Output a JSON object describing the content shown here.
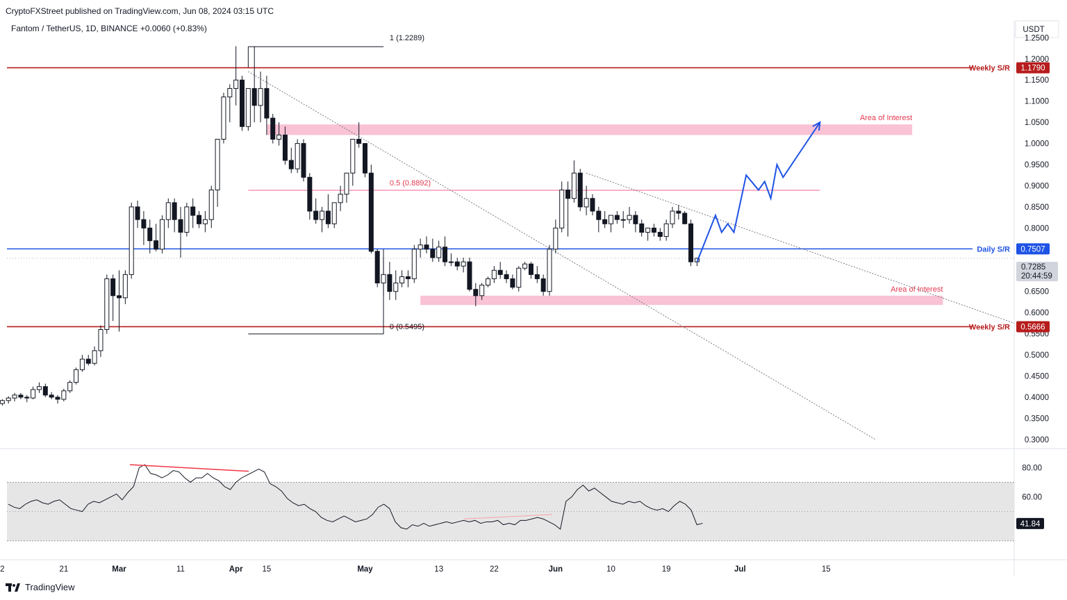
{
  "header": {
    "published": "CryptoFXStreet published on TradingView.com, Jun 08, 2024 03:15 UTC"
  },
  "chart_data": {
    "type": "candlestick",
    "symbol_line": "Fantom / TetherUS, 1D, BINANCE",
    "change_text": "+0.0060 (+0.83%)",
    "currency": "USDT",
    "ylim": [
      0.28,
      1.29
    ],
    "y_ticks": [
      "1.2500",
      "1.2000",
      "1.1500",
      "1.1000",
      "1.0500",
      "1.0000",
      "0.9500",
      "0.9000",
      "0.8500",
      "0.8000",
      "0.6500",
      "0.6000",
      "0.5500",
      "0.5000",
      "0.4500",
      "0.4000",
      "0.3500",
      "0.3000"
    ],
    "x_ticks": [
      {
        "day": -29,
        "label": "2"
      },
      {
        "day": -19,
        "label": "21"
      },
      {
        "day": -10,
        "label": "Mar"
      },
      {
        "day": 0,
        "label": "11"
      },
      {
        "day": 9,
        "label": "Apr"
      },
      {
        "day": 14,
        "label": "15"
      },
      {
        "day": 30,
        "label": "May"
      },
      {
        "day": 42,
        "label": "13"
      },
      {
        "day": 51,
        "label": "22"
      },
      {
        "day": 61,
        "label": "Jun"
      },
      {
        "day": 70,
        "label": "10"
      },
      {
        "day": 79,
        "label": "19"
      },
      {
        "day": 91,
        "label": "Jul"
      },
      {
        "day": 105,
        "label": "15"
      }
    ],
    "candles": [
      [
        -29,
        0.385,
        0.395,
        0.38,
        0.392
      ],
      [
        -28,
        0.392,
        0.402,
        0.385,
        0.398
      ],
      [
        -27,
        0.398,
        0.41,
        0.39,
        0.405
      ],
      [
        -26,
        0.405,
        0.41,
        0.395,
        0.4
      ],
      [
        -25,
        0.4,
        0.405,
        0.388,
        0.398
      ],
      [
        -24,
        0.398,
        0.425,
        0.395,
        0.418
      ],
      [
        -23,
        0.418,
        0.435,
        0.41,
        0.425
      ],
      [
        -22,
        0.425,
        0.432,
        0.4,
        0.405
      ],
      [
        -21,
        0.405,
        0.412,
        0.395,
        0.4
      ],
      [
        -20,
        0.4,
        0.405,
        0.385,
        0.395
      ],
      [
        -19,
        0.395,
        0.42,
        0.39,
        0.415
      ],
      [
        -18,
        0.415,
        0.44,
        0.41,
        0.435
      ],
      [
        -17,
        0.435,
        0.47,
        0.43,
        0.465
      ],
      [
        -16,
        0.465,
        0.5,
        0.46,
        0.49
      ],
      [
        -15,
        0.49,
        0.5,
        0.475,
        0.48
      ],
      [
        -14,
        0.48,
        0.52,
        0.475,
        0.51
      ],
      [
        -13,
        0.51,
        0.57,
        0.495,
        0.56
      ],
      [
        -12,
        0.56,
        0.69,
        0.55,
        0.68
      ],
      [
        -11,
        0.68,
        0.69,
        0.58,
        0.64
      ],
      [
        -10,
        0.64,
        0.7,
        0.555,
        0.635
      ],
      [
        -9,
        0.635,
        0.7,
        0.62,
        0.69
      ],
      [
        -8,
        0.69,
        0.86,
        0.68,
        0.85
      ],
      [
        -7,
        0.85,
        0.865,
        0.8,
        0.82
      ],
      [
        -6,
        0.82,
        0.84,
        0.76,
        0.8
      ],
      [
        -5,
        0.8,
        0.82,
        0.74,
        0.77
      ],
      [
        -4,
        0.77,
        0.81,
        0.745,
        0.75
      ],
      [
        -3,
        0.75,
        0.83,
        0.74,
        0.82
      ],
      [
        -2,
        0.82,
        0.87,
        0.8,
        0.86
      ],
      [
        -1,
        0.86,
        0.87,
        0.79,
        0.82
      ],
      [
        0,
        0.82,
        0.85,
        0.73,
        0.79
      ],
      [
        1,
        0.79,
        0.86,
        0.78,
        0.85
      ],
      [
        2,
        0.85,
        0.87,
        0.8,
        0.83
      ],
      [
        3,
        0.83,
        0.84,
        0.8,
        0.81
      ],
      [
        4,
        0.81,
        0.84,
        0.79,
        0.82
      ],
      [
        5,
        0.82,
        0.9,
        0.8,
        0.89
      ],
      [
        6,
        0.89,
        1.0,
        0.85,
        1.01
      ],
      [
        7,
        1.01,
        1.12,
        1.0,
        1.11
      ],
      [
        8,
        1.11,
        1.14,
        1.05,
        1.13
      ],
      [
        9,
        1.13,
        1.23,
        1.09,
        1.15
      ],
      [
        10,
        1.15,
        1.16,
        1.03,
        1.04
      ],
      [
        11,
        1.04,
        1.13,
        1.03,
        1.13
      ],
      [
        12,
        1.13,
        1.23,
        1.05,
        1.09
      ],
      [
        13,
        1.09,
        1.17,
        1.05,
        1.13
      ],
      [
        14,
        1.13,
        1.16,
        1.02,
        1.06
      ],
      [
        15,
        1.06,
        1.07,
        1.0,
        1.01
      ],
      [
        16,
        1.01,
        1.05,
        0.995,
        1.02
      ],
      [
        17,
        1.02,
        1.04,
        0.95,
        0.96
      ],
      [
        18,
        0.96,
        0.99,
        0.93,
        0.94
      ],
      [
        19,
        0.94,
        1.01,
        0.93,
        1.0
      ],
      [
        20,
        1.0,
        1.01,
        0.91,
        0.92
      ],
      [
        21,
        0.92,
        0.93,
        0.82,
        0.84
      ],
      [
        22,
        0.84,
        0.87,
        0.81,
        0.82
      ],
      [
        23,
        0.82,
        0.85,
        0.79,
        0.84
      ],
      [
        24,
        0.84,
        0.88,
        0.8,
        0.81
      ],
      [
        25,
        0.81,
        0.86,
        0.8,
        0.86
      ],
      [
        26,
        0.86,
        0.9,
        0.84,
        0.88
      ],
      [
        27,
        0.88,
        0.93,
        0.86,
        0.93
      ],
      [
        28,
        0.93,
        1.0,
        0.9,
        1.01
      ],
      [
        29,
        1.01,
        1.05,
        0.99,
        1.0
      ],
      [
        30,
        1.0,
        1.0,
        0.92,
        0.93
      ],
      [
        31,
        0.93,
        0.95,
        0.74,
        0.745
      ],
      [
        32,
        0.745,
        0.75,
        0.66,
        0.67
      ],
      [
        33,
        0.67,
        0.73,
        0.64,
        0.69
      ],
      [
        34,
        0.69,
        0.72,
        0.63,
        0.65
      ],
      [
        35,
        0.65,
        0.7,
        0.63,
        0.67
      ],
      [
        36,
        0.67,
        0.7,
        0.66,
        0.685
      ],
      [
        37,
        0.685,
        0.7,
        0.66,
        0.68
      ],
      [
        38,
        0.68,
        0.76,
        0.67,
        0.75
      ],
      [
        39,
        0.75,
        0.775,
        0.73,
        0.76
      ],
      [
        40,
        0.76,
        0.78,
        0.74,
        0.75
      ],
      [
        41,
        0.75,
        0.775,
        0.72,
        0.73
      ],
      [
        42,
        0.73,
        0.77,
        0.72,
        0.755
      ],
      [
        43,
        0.755,
        0.78,
        0.71,
        0.72
      ],
      [
        44,
        0.72,
        0.74,
        0.71,
        0.72
      ],
      [
        45,
        0.72,
        0.73,
        0.7,
        0.71
      ],
      [
        46,
        0.71,
        0.73,
        0.695,
        0.72
      ],
      [
        47,
        0.72,
        0.73,
        0.65,
        0.655
      ],
      [
        48,
        0.655,
        0.67,
        0.615,
        0.64
      ],
      [
        49,
        0.64,
        0.67,
        0.63,
        0.665
      ],
      [
        50,
        0.665,
        0.685,
        0.66,
        0.68
      ],
      [
        51,
        0.68,
        0.71,
        0.67,
        0.7
      ],
      [
        52,
        0.7,
        0.72,
        0.68,
        0.69
      ],
      [
        53,
        0.69,
        0.7,
        0.67,
        0.68
      ],
      [
        54,
        0.68,
        0.69,
        0.655,
        0.66
      ],
      [
        55,
        0.66,
        0.71,
        0.65,
        0.705
      ],
      [
        56,
        0.705,
        0.72,
        0.7,
        0.715
      ],
      [
        57,
        0.715,
        0.72,
        0.68,
        0.69
      ],
      [
        58,
        0.69,
        0.71,
        0.67,
        0.68
      ],
      [
        59,
        0.68,
        0.69,
        0.64,
        0.65
      ],
      [
        60,
        0.65,
        0.76,
        0.64,
        0.75
      ],
      [
        61,
        0.75,
        0.82,
        0.74,
        0.8
      ],
      [
        62,
        0.8,
        0.91,
        0.79,
        0.89
      ],
      [
        63,
        0.89,
        0.91,
        0.78,
        0.87
      ],
      [
        64,
        0.87,
        0.96,
        0.86,
        0.93
      ],
      [
        65,
        0.93,
        0.94,
        0.84,
        0.85
      ],
      [
        66,
        0.85,
        0.9,
        0.83,
        0.87
      ],
      [
        67,
        0.87,
        0.88,
        0.83,
        0.84
      ],
      [
        68,
        0.84,
        0.85,
        0.79,
        0.82
      ],
      [
        69,
        0.82,
        0.84,
        0.8,
        0.81
      ],
      [
        70,
        0.81,
        0.83,
        0.79,
        0.83
      ],
      [
        71,
        0.83,
        0.84,
        0.81,
        0.82
      ],
      [
        72,
        0.82,
        0.84,
        0.8,
        0.82
      ],
      [
        73,
        0.82,
        0.85,
        0.81,
        0.83
      ],
      [
        74,
        0.83,
        0.84,
        0.79,
        0.81
      ],
      [
        75,
        0.81,
        0.82,
        0.78,
        0.79
      ],
      [
        76,
        0.79,
        0.8,
        0.77,
        0.8
      ],
      [
        77,
        0.8,
        0.81,
        0.78,
        0.79
      ],
      [
        78,
        0.79,
        0.8,
        0.77,
        0.78
      ],
      [
        79,
        0.78,
        0.82,
        0.77,
        0.81
      ],
      [
        80,
        0.81,
        0.85,
        0.8,
        0.84
      ],
      [
        81,
        0.84,
        0.855,
        0.82,
        0.835
      ],
      [
        82,
        0.835,
        0.84,
        0.81,
        0.81
      ],
      [
        83,
        0.81,
        0.82,
        0.71,
        0.72
      ],
      [
        84,
        0.72,
        0.73,
        0.71,
        0.7285
      ]
    ],
    "levels": [
      {
        "price": 1.179,
        "color": "#b71c1c",
        "label": "Weekly S/R",
        "tag": "1.1790"
      },
      {
        "price": 0.7507,
        "color": "#1e53e5",
        "label": "Daily S/R",
        "tag": "0.7507"
      },
      {
        "price": 0.5666,
        "color": "#b71c1c",
        "label": "Weekly S/R",
        "tag": "0.5666"
      }
    ],
    "zones": [
      {
        "from_day": 14,
        "to_day": 119,
        "low": 1.02,
        "high": 1.045,
        "label": "Area of Interest",
        "color": "#f8bbd0"
      },
      {
        "from_day": 39,
        "to_day": 124,
        "low": 0.618,
        "high": 0.64,
        "label": "Area of Interest",
        "color": "#f8bbd0"
      }
    ],
    "fib": {
      "levels": [
        {
          "ratio": "1",
          "price": 1.2289,
          "text": "1 (1.2289)"
        },
        {
          "ratio": "0.5",
          "price": 0.8892,
          "text": "0.5 (0.8892)"
        },
        {
          "ratio": "0",
          "price": 0.5495,
          "text": "0 (0.5495)"
        }
      ]
    },
    "current": {
      "price": 0.7285,
      "price_tag": "0.7285",
      "countdown": "20:44:59"
    },
    "projection": [
      [
        84,
        0.72
      ],
      [
        87,
        0.83
      ],
      [
        88,
        0.79
      ],
      [
        89,
        0.81
      ],
      [
        90,
        0.79
      ],
      [
        92,
        0.925
      ],
      [
        94,
        0.89
      ],
      [
        95,
        0.91
      ],
      [
        96,
        0.87
      ],
      [
        97,
        0.95
      ],
      [
        98,
        0.92
      ],
      [
        104,
        1.05
      ]
    ],
    "rsi": {
      "ticks": [
        "80.00",
        "60.00"
      ],
      "ylim": [
        20,
        92
      ],
      "band": [
        30,
        70
      ],
      "mid": 50,
      "last_tag": "41.84",
      "values": [
        55,
        53,
        52,
        55,
        57,
        58,
        56,
        55,
        57,
        58,
        55,
        52,
        51,
        50,
        55,
        57,
        56,
        58,
        60,
        62,
        58,
        63,
        67,
        80,
        82,
        76,
        75,
        73,
        75,
        78,
        77,
        73,
        70,
        73,
        73,
        76,
        73,
        71,
        67,
        65,
        70,
        73,
        75,
        77,
        79,
        77,
        69,
        67,
        64,
        59,
        56,
        54,
        55,
        52,
        50,
        46,
        44,
        43,
        45,
        47,
        45,
        43,
        44,
        45,
        48,
        53,
        55,
        52,
        43,
        39,
        38,
        41,
        40,
        42,
        40,
        41,
        42,
        43,
        42,
        43,
        44,
        43,
        44,
        42,
        43,
        43,
        44,
        41,
        42,
        41,
        44,
        44,
        45,
        46,
        45,
        43,
        41,
        38,
        57,
        60,
        65,
        68,
        64,
        66,
        63,
        60,
        57,
        56,
        55,
        57,
        56,
        57,
        54,
        52,
        51,
        52,
        50,
        54,
        57,
        55,
        51,
        41,
        42
      ]
    }
  }
}
